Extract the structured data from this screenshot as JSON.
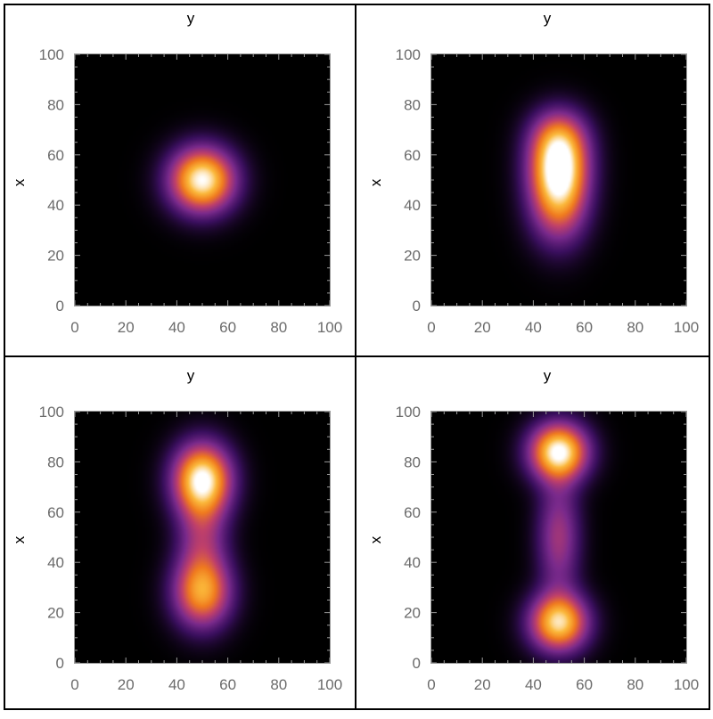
{
  "chart_data": [
    {
      "type": "heatmap",
      "title": "y",
      "xlabel": "y",
      "ylabel": "x",
      "xlim": [
        0,
        100
      ],
      "ylim": [
        0,
        100
      ],
      "xticks": [
        "0",
        "20",
        "40",
        "60",
        "80",
        "100"
      ],
      "yticks": [
        "0",
        "20",
        "40",
        "60",
        "80",
        "100"
      ],
      "colormap": [
        "#000000",
        "#3a0f5e",
        "#7a2a8c",
        "#c0406a",
        "#f07a1e",
        "#fbb83a",
        "#ffffff"
      ],
      "blobs": [
        {
          "y": 50,
          "x": 50,
          "sy": 9,
          "sx": 9,
          "amp": 1.0
        }
      ]
    },
    {
      "type": "heatmap",
      "title": "y",
      "xlabel": "y",
      "ylabel": "x",
      "xlim": [
        0,
        100
      ],
      "ylim": [
        0,
        100
      ],
      "xticks": [
        "0",
        "20",
        "40",
        "60",
        "80",
        "100"
      ],
      "yticks": [
        "0",
        "20",
        "40",
        "60",
        "80",
        "100"
      ],
      "colormap": [
        "#000000",
        "#3a0f5e",
        "#7a2a8c",
        "#c0406a",
        "#f07a1e",
        "#fbb83a",
        "#ffffff"
      ],
      "blobs": [
        {
          "y": 50,
          "x": 56,
          "sy": 8,
          "sx": 11,
          "amp": 0.85
        },
        {
          "y": 50,
          "x": 40,
          "sy": 8,
          "sx": 12,
          "amp": 0.55
        },
        {
          "y": 50,
          "x": 68,
          "sy": 8,
          "sx": 8,
          "amp": 0.35
        }
      ]
    },
    {
      "type": "heatmap",
      "title": "y",
      "xlabel": "y",
      "ylabel": "x",
      "xlim": [
        0,
        100
      ],
      "ylim": [
        0,
        100
      ],
      "xticks": [
        "0",
        "20",
        "40",
        "60",
        "80",
        "100"
      ],
      "yticks": [
        "0",
        "20",
        "40",
        "60",
        "80",
        "100"
      ],
      "colormap": [
        "#000000",
        "#3a0f5e",
        "#7a2a8c",
        "#c0406a",
        "#f07a1e",
        "#fbb83a",
        "#ffffff"
      ],
      "blobs": [
        {
          "y": 50,
          "x": 73,
          "sy": 8,
          "sx": 10,
          "amp": 1.0
        },
        {
          "y": 50,
          "x": 28,
          "sy": 8,
          "sx": 10,
          "amp": 0.75
        },
        {
          "y": 50,
          "x": 50,
          "sy": 7,
          "sx": 12,
          "amp": 0.35
        }
      ]
    },
    {
      "type": "heatmap",
      "title": "y",
      "xlabel": "y",
      "ylabel": "x",
      "xlim": [
        0,
        100
      ],
      "ylim": [
        0,
        100
      ],
      "xticks": [
        "0",
        "20",
        "40",
        "60",
        "80",
        "100"
      ],
      "yticks": [
        "0",
        "20",
        "40",
        "60",
        "80",
        "100"
      ],
      "colormap": [
        "#000000",
        "#3a0f5e",
        "#7a2a8c",
        "#c0406a",
        "#f07a1e",
        "#fbb83a",
        "#ffffff"
      ],
      "blobs": [
        {
          "y": 50,
          "x": 84,
          "sy": 8,
          "sx": 8,
          "amp": 1.0
        },
        {
          "y": 50,
          "x": 16,
          "sy": 8,
          "sx": 8,
          "amp": 0.9
        },
        {
          "y": 50,
          "x": 50,
          "sy": 6,
          "sx": 16,
          "amp": 0.42
        }
      ]
    }
  ]
}
